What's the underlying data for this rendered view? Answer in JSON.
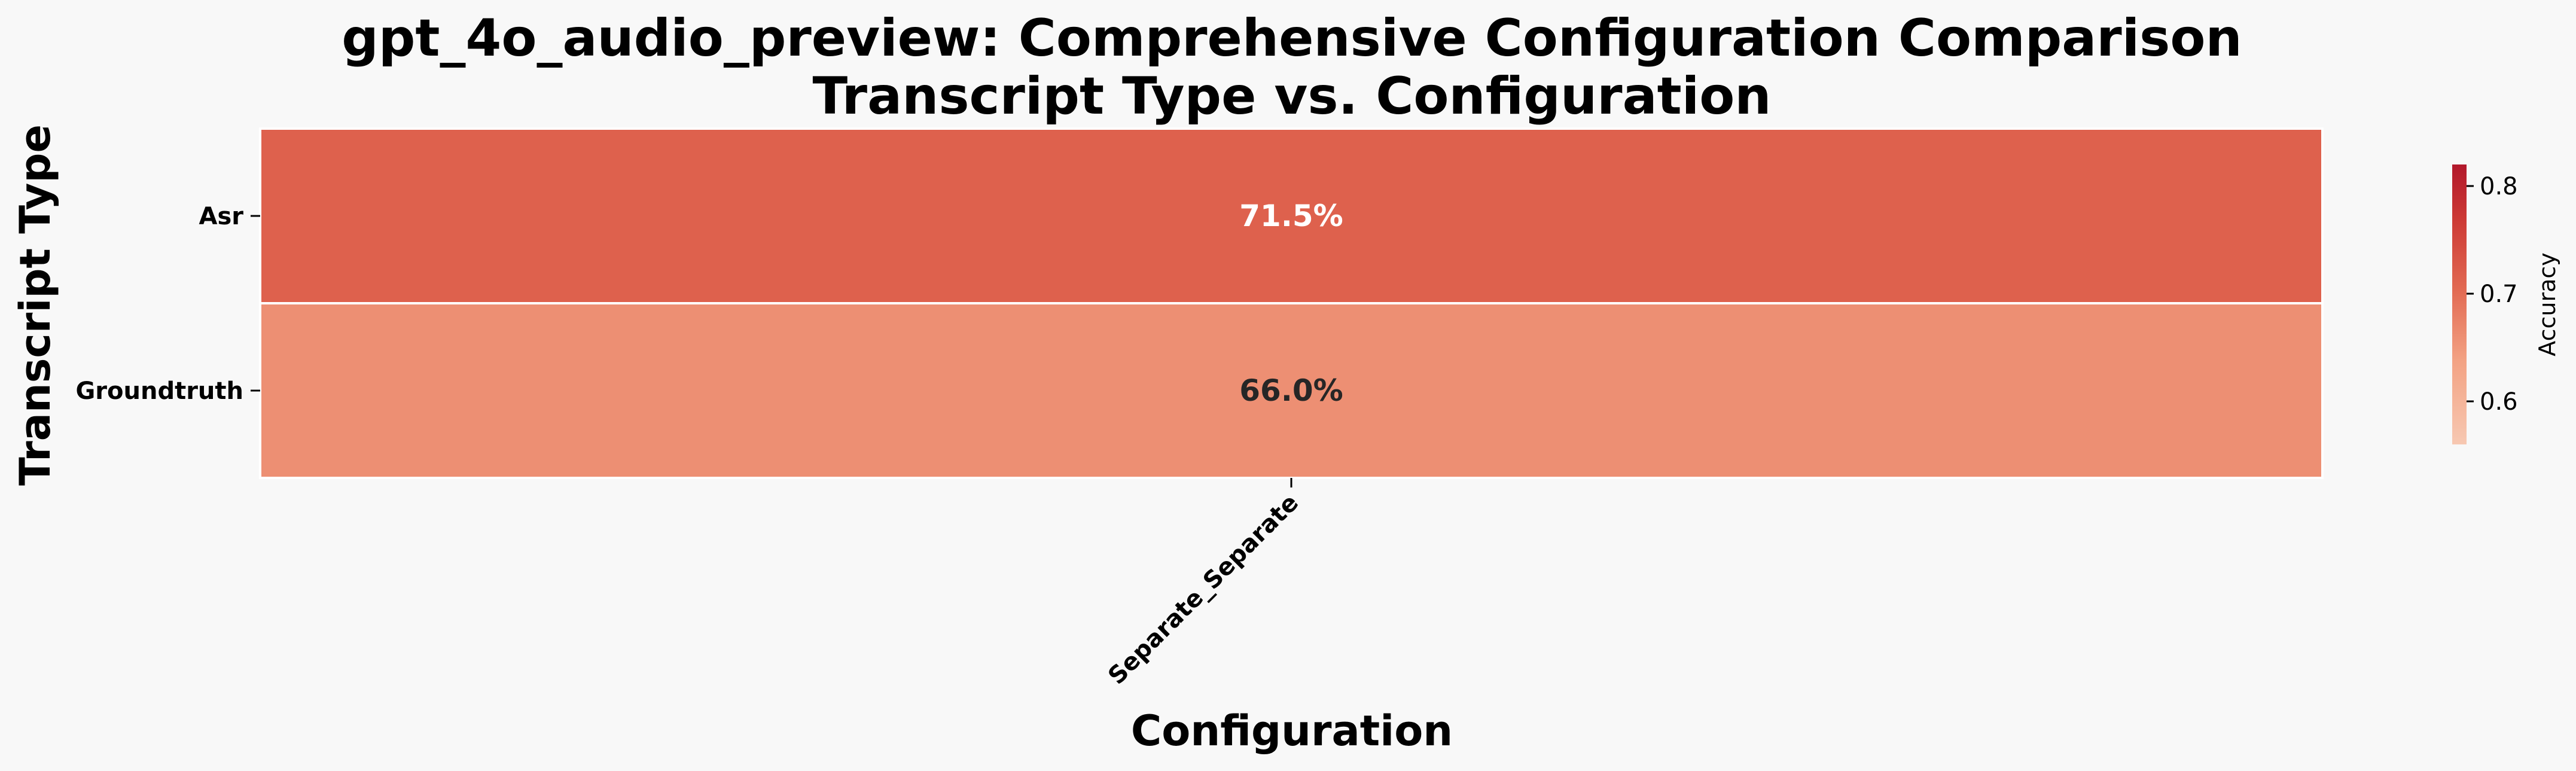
{
  "chart_data": {
    "type": "heatmap",
    "title": "gpt_4o_audio_preview: Comprehensive Configuration Comparison",
    "subtitle": "Transcript Type vs. Configuration",
    "xlabel": "Configuration",
    "ylabel": "Transcript Type",
    "x_categories": [
      "Separate_Separate"
    ],
    "y_categories": [
      "Asr",
      "Groundtruth"
    ],
    "values": [
      [
        0.715
      ],
      [
        0.66
      ]
    ],
    "cell_labels": [
      [
        "71.5%"
      ],
      [
        "66.0%"
      ]
    ],
    "colorbar": {
      "label": "Accuracy",
      "range": [
        0.56,
        0.82
      ],
      "ticks": [
        "0.6",
        "0.7",
        "0.8"
      ],
      "tick_values": [
        0.6,
        0.7,
        0.8
      ],
      "colormap": "reds"
    },
    "grid": false
  }
}
